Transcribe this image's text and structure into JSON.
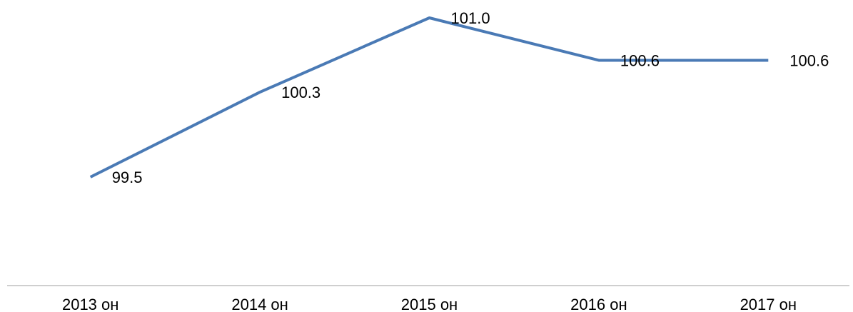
{
  "chart_data": {
    "type": "line",
    "categories": [
      "2013 он",
      "2014 он",
      "2015 он",
      "2016 он",
      "2017 он"
    ],
    "series": [
      {
        "color": "#4a7ab5",
        "values": [
          99.5,
          100.3,
          101.0,
          100.6,
          100.6
        ],
        "value_labels": [
          "99.5",
          "100.3",
          "101.0",
          "100.6",
          "100.6"
        ]
      }
    ]
  }
}
